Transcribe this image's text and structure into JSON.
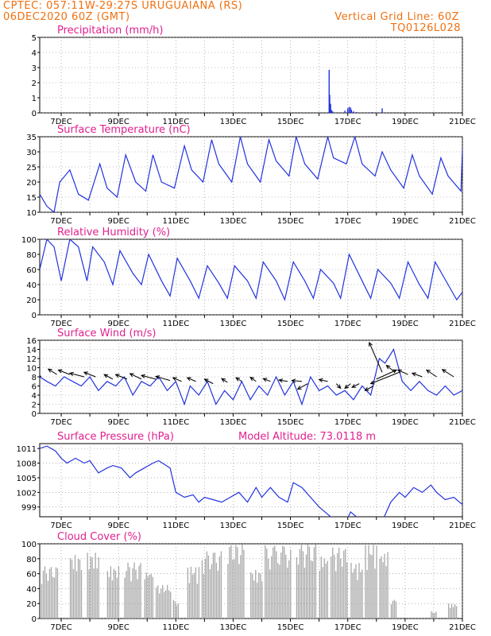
{
  "header": {
    "line1_left": "CPTEC:  057:11W-29:27S  URUGUAIANA (RS)",
    "line2_left": "06DEC2020 60Z (GMT)",
    "line1_right": "Vertical Grid Line: 60Z",
    "line2_right": "TQ0126L028"
  },
  "colors": {
    "header": "#f07010",
    "title": "#e0208f",
    "line": "#2233dd",
    "cloud": "#a8a8a8",
    "grid": "#888888"
  },
  "chart_data": [
    {
      "id": "precip",
      "type": "bar",
      "title": "Precipitation (mm/h)",
      "ylim": [
        0,
        5
      ],
      "yticks": [
        "0",
        "1",
        "2",
        "3",
        "4",
        "5"
      ],
      "xticks": [
        "7DEC",
        "9DEC",
        "11DEC",
        "13DEC",
        "15DEC",
        "17DEC",
        "19DEC",
        "21DEC"
      ],
      "x_start_day": 6.25,
      "x_end_day": 21.0,
      "bars": [
        [
          16.35,
          2.85
        ],
        [
          16.37,
          1.2
        ],
        [
          16.4,
          0.6
        ],
        [
          16.43,
          0.2
        ],
        [
          16.47,
          0.1
        ],
        [
          16.9,
          0.15
        ],
        [
          17.0,
          0.3
        ],
        [
          17.05,
          0.4
        ],
        [
          17.1,
          0.35
        ],
        [
          17.13,
          0.2
        ],
        [
          17.2,
          0.1
        ],
        [
          17.3,
          0.05
        ],
        [
          17.85,
          0.05
        ],
        [
          18.2,
          0.3
        ]
      ]
    },
    {
      "id": "temp",
      "type": "line",
      "title": "Surface Temperature (nC)",
      "ylim": [
        10,
        35
      ],
      "yticks": [
        "10",
        "15",
        "20",
        "25",
        "30",
        "35"
      ],
      "xticks": [
        "7DEC",
        "9DEC",
        "11DEC",
        "13DEC",
        "15DEC",
        "17DEC",
        "19DEC",
        "21DEC"
      ],
      "x_start_day": 6.25,
      "x_end_day": 21.0,
      "x": [
        6.25,
        6.5,
        6.75,
        6.95,
        7.3,
        7.6,
        7.95,
        8.35,
        8.6,
        8.95,
        9.25,
        9.6,
        9.95,
        10.2,
        10.5,
        10.95,
        11.3,
        11.55,
        11.95,
        12.25,
        12.5,
        12.95,
        13.25,
        13.5,
        13.95,
        14.25,
        14.5,
        14.95,
        15.2,
        15.5,
        15.95,
        16.3,
        16.5,
        16.95,
        17.25,
        17.5,
        17.95,
        18.2,
        18.5,
        18.95,
        19.25,
        19.5,
        19.95,
        20.25,
        20.5,
        20.95,
        21.0
      ],
      "y": [
        16,
        12,
        10,
        20,
        24,
        16,
        14,
        26,
        18,
        15,
        29,
        20,
        17,
        29,
        20,
        18,
        32,
        24,
        20,
        34,
        26,
        20,
        35,
        26,
        20,
        34,
        27,
        22,
        35,
        26,
        21,
        35,
        28,
        26,
        35,
        26,
        22,
        30,
        24,
        18,
        29,
        22,
        16,
        28,
        22,
        17,
        31
      ]
    },
    {
      "id": "rh",
      "type": "line",
      "title": "Relative Humidity (%)",
      "ylim": [
        0,
        100
      ],
      "yticks": [
        "0",
        "20",
        "40",
        "60",
        "80",
        "100"
      ],
      "xticks": [
        "7DEC",
        "9DEC",
        "11DEC",
        "13DEC",
        "15DEC",
        "17DEC",
        "19DEC",
        "21DEC"
      ],
      "x_start_day": 6.25,
      "x_end_day": 21.0,
      "x": [
        6.25,
        6.5,
        6.75,
        7.0,
        7.3,
        7.6,
        7.9,
        8.1,
        8.5,
        8.8,
        9.05,
        9.5,
        9.8,
        10.05,
        10.5,
        10.8,
        11.05,
        11.5,
        11.8,
        12.1,
        12.5,
        12.8,
        13.05,
        13.5,
        13.8,
        14.05,
        14.5,
        14.8,
        15.1,
        15.5,
        15.8,
        16.05,
        16.5,
        16.75,
        17.05,
        17.5,
        17.8,
        18.05,
        18.5,
        18.8,
        19.1,
        19.5,
        19.8,
        20.05,
        20.5,
        20.8,
        21.0
      ],
      "y": [
        60,
        100,
        90,
        45,
        100,
        90,
        45,
        90,
        70,
        40,
        85,
        55,
        40,
        80,
        45,
        25,
        75,
        45,
        22,
        65,
        42,
        22,
        65,
        45,
        22,
        70,
        45,
        20,
        70,
        45,
        22,
        60,
        42,
        22,
        80,
        45,
        22,
        60,
        42,
        22,
        70,
        40,
        22,
        70,
        40,
        20,
        30
      ]
    },
    {
      "id": "wind",
      "type": "line",
      "title": "Surface Wind (m/s)",
      "ylim": [
        0,
        16
      ],
      "yticks": [
        "0",
        "2",
        "4",
        "6",
        "8",
        "10",
        "12",
        "14",
        "16"
      ],
      "xticks": [
        "7DEC",
        "9DEC",
        "11DEC",
        "13DEC",
        "15DEC",
        "17DEC",
        "19DEC",
        "21DEC"
      ],
      "x_start_day": 6.25,
      "x_end_day": 21.0,
      "x": [
        6.25,
        6.5,
        6.8,
        7.1,
        7.4,
        7.7,
        8.0,
        8.3,
        8.6,
        8.9,
        9.2,
        9.5,
        9.8,
        10.1,
        10.4,
        10.7,
        11.0,
        11.3,
        11.5,
        11.8,
        12.1,
        12.4,
        12.7,
        13.0,
        13.3,
        13.6,
        13.9,
        14.2,
        14.5,
        14.8,
        15.1,
        15.4,
        15.7,
        16.0,
        16.3,
        16.6,
        16.9,
        17.2,
        17.5,
        17.8,
        18.1,
        18.3,
        18.6,
        18.9,
        19.2,
        19.5,
        19.8,
        20.1,
        20.4,
        20.7,
        21.0
      ],
      "y": [
        8,
        7,
        6,
        8,
        7,
        6,
        8,
        5,
        7,
        6,
        8,
        4,
        7,
        6,
        8,
        5,
        7,
        2,
        6,
        4,
        7,
        2,
        5,
        3,
        7,
        3,
        6,
        4,
        8,
        4,
        7,
        2,
        8,
        5,
        6,
        4,
        5,
        3,
        6,
        4,
        12,
        11,
        14,
        7,
        5,
        7,
        5,
        4,
        6,
        4,
        5
      ],
      "arrows": [
        [
          6.3,
          8,
          -0.25,
          1.5
        ],
        [
          6.85,
          8.5,
          -0.3,
          1.2
        ],
        [
          7.3,
          8.5,
          -0.4,
          1.0
        ],
        [
          7.8,
          8,
          -0.5,
          0.8
        ],
        [
          8.2,
          8,
          -0.4,
          1.0
        ],
        [
          8.8,
          7.5,
          -0.3,
          1.0
        ],
        [
          9.3,
          7.5,
          -0.4,
          1.0
        ],
        [
          9.8,
          7.5,
          -0.4,
          1.2
        ],
        [
          10.3,
          7.5,
          -0.5,
          0.8
        ],
        [
          10.8,
          7.2,
          -0.5,
          0.9
        ],
        [
          11.2,
          7,
          -0.3,
          0.8
        ],
        [
          11.7,
          7,
          -0.3,
          0.8
        ],
        [
          12.3,
          6.5,
          -0.3,
          1.0
        ],
        [
          12.8,
          6.8,
          -0.2,
          0.8
        ],
        [
          13.3,
          7,
          -0.2,
          0.8
        ],
        [
          13.8,
          7,
          -0.2,
          0.9
        ],
        [
          14.3,
          7,
          -0.25,
          0.6
        ],
        [
          14.9,
          7,
          -0.3,
          0.3
        ],
        [
          15.4,
          7,
          -0.35,
          0.2
        ],
        [
          15.6,
          6.5,
          -0.35,
          -1.2
        ],
        [
          16.3,
          7,
          -0.3,
          0.4
        ],
        [
          16.6,
          6.5,
          0.15,
          -1.0
        ],
        [
          17.1,
          6.5,
          -0.2,
          -1.0
        ],
        [
          17.4,
          6.5,
          -0.25,
          -0.8
        ],
        [
          17.9,
          6,
          -0.3,
          -1.0
        ],
        [
          18.2,
          9,
          -0.45,
          6.5
        ],
        [
          18.0,
          7.5,
          0.7,
          2.0
        ],
        [
          18.65,
          9,
          -0.3,
          1.5
        ],
        [
          18.8,
          9,
          -1.0,
          -2.5
        ],
        [
          19.1,
          8.5,
          -0.35,
          1.0
        ],
        [
          19.6,
          8,
          -0.35,
          0.8
        ],
        [
          20.1,
          8,
          -0.35,
          1.5
        ],
        [
          20.7,
          8,
          -0.4,
          1.6
        ]
      ]
    },
    {
      "id": "pres",
      "type": "line",
      "title": "Surface Pressure (hPa)",
      "subtitle": "Model Altitude: 73.0118 m",
      "ylim": [
        997,
        1012
      ],
      "ylabels": [
        999,
        1002,
        1005,
        1008,
        1011
      ],
      "ytick_labels": [
        "999",
        "1002",
        "1005",
        "1008",
        "1011"
      ],
      "xticks": [
        "7DEC",
        "9DEC",
        "11DEC",
        "13DEC",
        "15DEC",
        "17DEC",
        "19DEC",
        "21DEC"
      ],
      "x_start_day": 6.25,
      "x_end_day": 21.0,
      "x": [
        6.25,
        6.5,
        6.8,
        7.0,
        7.2,
        7.5,
        7.8,
        8.0,
        8.3,
        8.6,
        8.8,
        9.1,
        9.4,
        9.6,
        9.9,
        10.2,
        10.4,
        10.8,
        11.0,
        11.3,
        11.6,
        11.8,
        12.0,
        12.3,
        12.6,
        12.9,
        13.2,
        13.5,
        13.8,
        14.0,
        14.3,
        14.6,
        14.9,
        15.1,
        15.4,
        15.7,
        16.0,
        16.3,
        16.6,
        16.9,
        17.1,
        17.5,
        17.9,
        18.2,
        18.5,
        18.8,
        19.0,
        19.3,
        19.6,
        19.9,
        20.1,
        20.4,
        20.7,
        21.0
      ],
      "y": [
        1011,
        1011.5,
        1010.5,
        1009,
        1008,
        1009,
        1008,
        1008.5,
        1006,
        1007,
        1007.5,
        1007,
        1005,
        1006,
        1007,
        1008,
        1008.5,
        1007,
        1002,
        1001,
        1001.5,
        1000,
        1001,
        1000.5,
        1000,
        1001,
        1002,
        1000,
        1003,
        1001,
        1003,
        1001,
        1000,
        1004,
        1003,
        1001,
        999,
        997.5,
        996,
        995.5,
        998,
        996,
        995.5,
        996,
        1000,
        1002,
        1001,
        1003,
        1002,
        1003.5,
        1002,
        1000.5,
        1001,
        999.5
      ]
    },
    {
      "id": "cloud",
      "type": "area",
      "title": "Cloud Cover (%)",
      "ylim": [
        0,
        100
      ],
      "yticks": [
        "0",
        "20",
        "40",
        "60",
        "80",
        "100"
      ],
      "xticks": [
        "7DEC",
        "9DEC",
        "11DEC",
        "13DEC",
        "15DEC",
        "17DEC",
        "19DEC",
        "21DEC"
      ],
      "x_start_day": 6.25,
      "x_end_day": 21.0,
      "blocks": [
        [
          6.3,
          6.9,
          70
        ],
        [
          7.3,
          7.7,
          85
        ],
        [
          7.9,
          8.3,
          88
        ],
        [
          8.6,
          9.0,
          70
        ],
        [
          9.2,
          9.8,
          75
        ],
        [
          9.9,
          10.2,
          65
        ],
        [
          10.3,
          10.8,
          45
        ],
        [
          10.9,
          11.1,
          25
        ],
        [
          11.4,
          11.8,
          70
        ],
        [
          11.9,
          12.6,
          90
        ],
        [
          12.8,
          13.4,
          100
        ],
        [
          13.6,
          14.0,
          65
        ],
        [
          14.1,
          15.0,
          98
        ],
        [
          15.2,
          15.9,
          100
        ],
        [
          16.0,
          16.3,
          85
        ],
        [
          16.4,
          17.0,
          95
        ],
        [
          17.1,
          17.5,
          75
        ],
        [
          17.6,
          18.0,
          100
        ],
        [
          18.1,
          18.4,
          90
        ],
        [
          18.5,
          18.7,
          25
        ],
        [
          19.9,
          20.1,
          10
        ],
        [
          20.5,
          20.8,
          20
        ]
      ]
    }
  ]
}
